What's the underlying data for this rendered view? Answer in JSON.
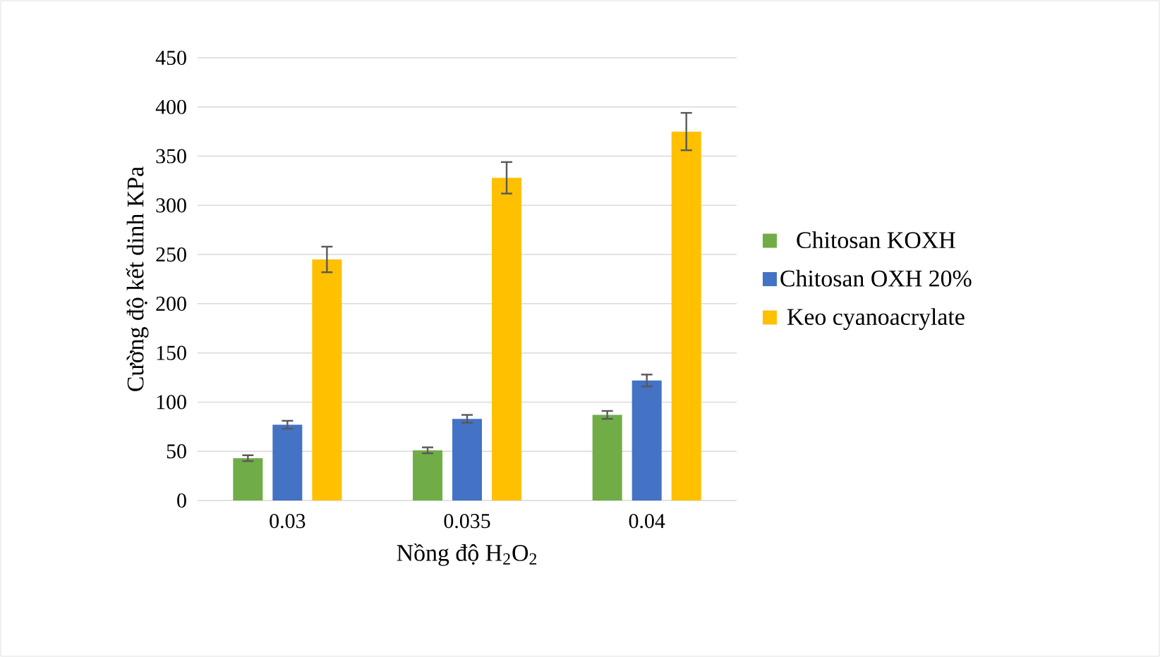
{
  "chart_data": {
    "type": "bar",
    "xlabel": "Nồng độ H$_{2}$O$_{2}$",
    "ylabel": "Cường độ kết dinh KPa",
    "categories": [
      "0.03",
      "0.035",
      "0.04"
    ],
    "series": [
      {
        "name": "Chitosan KOXH",
        "color": "#70ad47",
        "values": [
          43,
          51,
          87
        ],
        "errors": [
          3,
          3,
          4
        ]
      },
      {
        "name": "Chitosan OXH 20%",
        "color": "#4472c4",
        "values": [
          77,
          83,
          122
        ],
        "errors": [
          4,
          4,
          6
        ]
      },
      {
        "name": "Keo cyanoacrylate",
        "color": "#ffc000",
        "values": [
          245,
          328,
          375
        ],
        "errors": [
          13,
          16,
          19
        ]
      }
    ],
    "ylim": [
      0,
      450
    ],
    "yticks": [
      0,
      50,
      100,
      150,
      200,
      250,
      300,
      350,
      400,
      450
    ],
    "grid": "y",
    "legend": "right"
  }
}
